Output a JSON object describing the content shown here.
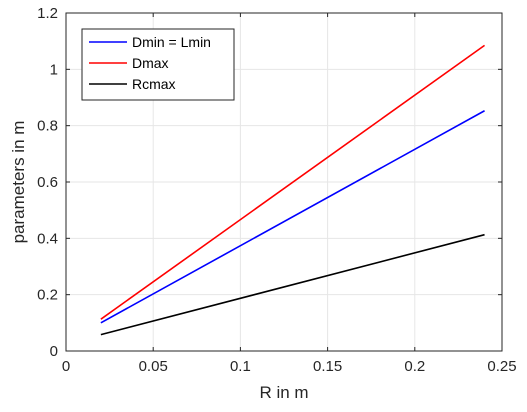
{
  "chart_data": {
    "type": "line",
    "title": "",
    "xlabel": "R in m",
    "ylabel": "parameters in m",
    "xlim": [
      0,
      0.25
    ],
    "ylim": [
      0,
      1.2
    ],
    "xticks": [
      0,
      0.05,
      0.1,
      0.15,
      0.2,
      0.25
    ],
    "xtick_labels": [
      "0",
      "0.05",
      "0.1",
      "0.15",
      "0.2",
      "0.25"
    ],
    "yticks": [
      0,
      0.2,
      0.4,
      0.6,
      0.8,
      1,
      1.2
    ],
    "ytick_labels": [
      "0",
      "0.2",
      "0.4",
      "0.6",
      "0.8",
      "1",
      "1.2"
    ],
    "grid": true,
    "legend_position": "top-left",
    "series": [
      {
        "name": "Dmin = Lmin",
        "color": "#0000ff",
        "x": [
          0.02,
          0.24
        ],
        "y": [
          0.1,
          0.853
        ]
      },
      {
        "name": "Dmax",
        "color": "#ff0000",
        "x": [
          0.02,
          0.24
        ],
        "y": [
          0.113,
          1.085
        ]
      },
      {
        "name": "Rcmax",
        "color": "#000000",
        "x": [
          0.02,
          0.24
        ],
        "y": [
          0.058,
          0.413
        ]
      }
    ]
  }
}
